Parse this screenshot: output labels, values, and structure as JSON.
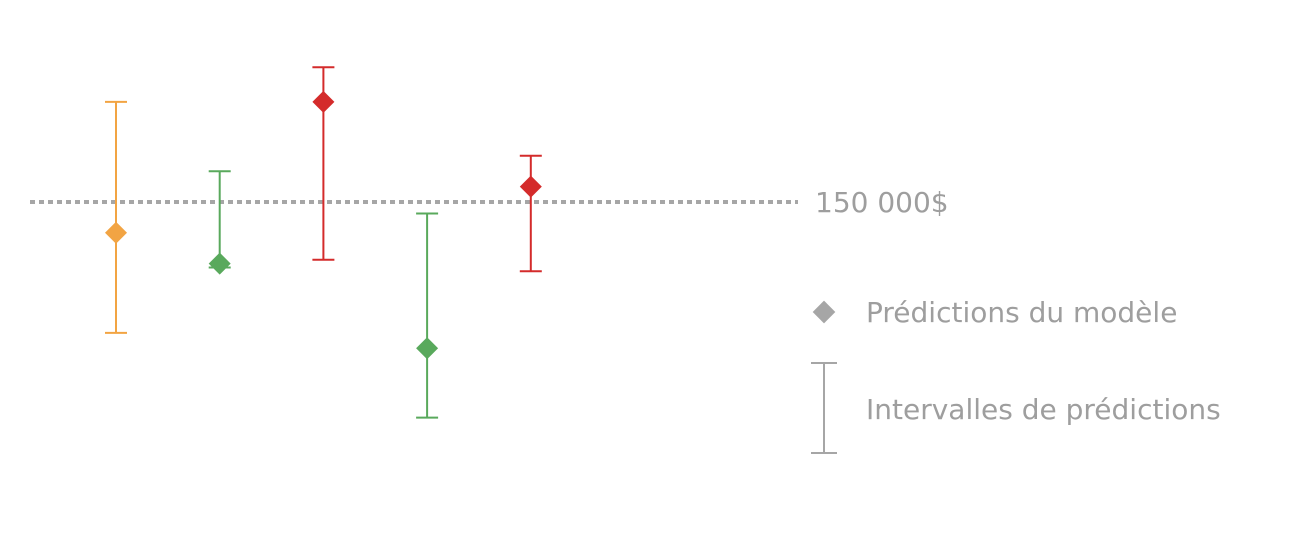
{
  "chart_data": {
    "type": "scatter",
    "title": "",
    "xlabel": "",
    "ylabel": "",
    "grid": false,
    "threshold": {
      "value": 150000,
      "label": "150 000$"
    },
    "legend": {
      "placement": "right",
      "point_label": "Prédictions du modèle",
      "interval_label": "Intervalles de prédictions",
      "color": "#a6a6a6"
    },
    "points": [
      {
        "x": 1,
        "y": 142000,
        "low": 116000,
        "high": 176000,
        "color": "#f2a443"
      },
      {
        "x": 2,
        "y": 134000,
        "low": 133000,
        "high": 158000,
        "color": "#59a95c"
      },
      {
        "x": 3,
        "y": 176000,
        "low": 135000,
        "high": 185000,
        "color": "#d42b2b"
      },
      {
        "x": 4,
        "y": 112000,
        "low": 94000,
        "high": 147000,
        "color": "#59a95c"
      },
      {
        "x": 5,
        "y": 154000,
        "low": 132000,
        "high": 162000,
        "color": "#d42b2b"
      }
    ]
  }
}
